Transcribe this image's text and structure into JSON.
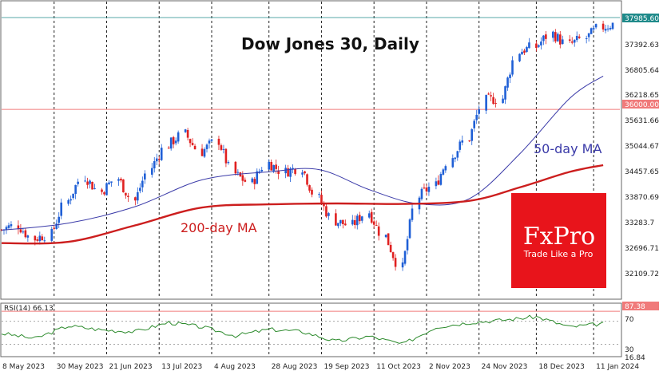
{
  "chart_data": [
    {
      "type": "candlestick",
      "title": "Dow Jones 30, Daily",
      "y_ticks": [
        37392.63,
        36805.64,
        36218.65,
        35631.66,
        35044.67,
        34457.65,
        33870.69,
        33283.7,
        32696.71,
        32109.72
      ],
      "ylim": [
        31760,
        38420
      ],
      "x_ticks": [
        "8 May 2023",
        "30 May 2023",
        "21 Jun 2023",
        "13 Jul 2023",
        "4 Aug 2023",
        "28 Aug 2023",
        "19 Sep 2023",
        "11 Oct 2023",
        "2 Nov 2023",
        "24 Nov 2023",
        "18 Dec 2023",
        "11 Jan 2024"
      ],
      "price_tag": "37985.60",
      "level_tag": "36000.00",
      "level_value": 36000.0,
      "candle_color_up": "#1f5fd6",
      "candle_color_down": "#e02020",
      "closes_by_week": [
        {
          "week": "2023-05-08",
          "close": 33300
        },
        {
          "week": "2023-05-15",
          "close": 33400
        },
        {
          "week": "2023-05-22",
          "close": 33100
        },
        {
          "week": "2023-05-29",
          "close": 33200
        },
        {
          "week": "2023-06-05",
          "close": 33950
        },
        {
          "week": "2023-06-12",
          "close": 34500
        },
        {
          "week": "2023-06-19",
          "close": 34150
        },
        {
          "week": "2023-06-26",
          "close": 34450
        },
        {
          "week": "2023-07-03",
          "close": 33950
        },
        {
          "week": "2023-07-10",
          "close": 34700
        },
        {
          "week": "2023-07-17",
          "close": 35200
        },
        {
          "week": "2023-07-24",
          "close": 35450
        },
        {
          "week": "2023-07-31",
          "close": 35050
        },
        {
          "week": "2023-08-07",
          "close": 35300
        },
        {
          "week": "2023-08-14",
          "close": 34550
        },
        {
          "week": "2023-08-21",
          "close": 34350
        },
        {
          "week": "2023-08-28",
          "close": 34800
        },
        {
          "week": "2023-09-04",
          "close": 34600
        },
        {
          "week": "2023-09-11",
          "close": 34700
        },
        {
          "week": "2023-09-18",
          "close": 34000
        },
        {
          "week": "2023-09-25",
          "close": 33500
        },
        {
          "week": "2023-10-02",
          "close": 33400
        },
        {
          "week": "2023-10-09",
          "close": 33700
        },
        {
          "week": "2023-10-16",
          "close": 33150
        },
        {
          "week": "2023-10-23",
          "close": 32450
        },
        {
          "week": "2023-10-30",
          "close": 34050
        },
        {
          "week": "2023-11-06",
          "close": 34300
        },
        {
          "week": "2023-11-13",
          "close": 34950
        },
        {
          "week": "2023-11-20",
          "close": 35350
        },
        {
          "week": "2023-11-27",
          "close": 36200
        },
        {
          "week": "2023-12-04",
          "close": 36250
        },
        {
          "week": "2023-12-11",
          "close": 37300
        },
        {
          "week": "2023-12-18",
          "close": 37400
        },
        {
          "week": "2023-12-25",
          "close": 37700
        },
        {
          "week": "2024-01-01",
          "close": 37450
        },
        {
          "week": "2024-01-08",
          "close": 37600
        },
        {
          "week": "2024-01-15",
          "close": 37850
        }
      ],
      "ma50": {
        "name": "50-day MA",
        "color": "#3a3aa8",
        "values": [
          {
            "week": "2023-05-08",
            "v": 33290
          },
          {
            "week": "2023-06-05",
            "v": 33450
          },
          {
            "week": "2023-07-03",
            "v": 33820
          },
          {
            "week": "2023-07-31",
            "v": 34420
          },
          {
            "week": "2023-08-28",
            "v": 34600
          },
          {
            "week": "2023-09-18",
            "v": 34650
          },
          {
            "week": "2023-10-09",
            "v": 34200
          },
          {
            "week": "2023-10-30",
            "v": 33880
          },
          {
            "week": "2023-11-20",
            "v": 34000
          },
          {
            "week": "2023-12-11",
            "v": 35000
          },
          {
            "week": "2024-01-01",
            "v": 36250
          },
          {
            "week": "2024-01-15",
            "v": 36750
          }
        ]
      },
      "ma200": {
        "name": "200-day MA",
        "color": "#cc1e1e",
        "values": [
          {
            "week": "2023-05-08",
            "v": 33000
          },
          {
            "week": "2023-06-05",
            "v": 33030
          },
          {
            "week": "2023-07-03",
            "v": 33400
          },
          {
            "week": "2023-07-31",
            "v": 33800
          },
          {
            "week": "2023-08-28",
            "v": 33870
          },
          {
            "week": "2023-09-25",
            "v": 33890
          },
          {
            "week": "2023-10-23",
            "v": 33880
          },
          {
            "week": "2023-11-20",
            "v": 33950
          },
          {
            "week": "2023-12-11",
            "v": 34250
          },
          {
            "week": "2024-01-01",
            "v": 34600
          },
          {
            "week": "2024-01-15",
            "v": 34750
          }
        ]
      }
    },
    {
      "type": "line",
      "name": "RSI",
      "label": "RSI(14) 66.13",
      "y_ticks": [
        70.0,
        30.0
      ],
      "ylim": [
        10,
        100
      ],
      "overbought_tag": "87.38",
      "bottom_tag": "16.84",
      "color": "#2b8a2b",
      "values": [
        {
          "week": "2023-05-08",
          "v": 49
        },
        {
          "week": "2023-05-22",
          "v": 40
        },
        {
          "week": "2023-06-05",
          "v": 62
        },
        {
          "week": "2023-06-19",
          "v": 55
        },
        {
          "week": "2023-07-03",
          "v": 52
        },
        {
          "week": "2023-07-17",
          "v": 68
        },
        {
          "week": "2023-07-31",
          "v": 60
        },
        {
          "week": "2023-08-14",
          "v": 45
        },
        {
          "week": "2023-08-28",
          "v": 56
        },
        {
          "week": "2023-09-11",
          "v": 52
        },
        {
          "week": "2023-09-25",
          "v": 35
        },
        {
          "week": "2023-10-09",
          "v": 44
        },
        {
          "week": "2023-10-23",
          "v": 30
        },
        {
          "week": "2023-11-06",
          "v": 60
        },
        {
          "week": "2023-11-20",
          "v": 68
        },
        {
          "week": "2023-12-04",
          "v": 72
        },
        {
          "week": "2023-12-18",
          "v": 78
        },
        {
          "week": "2024-01-01",
          "v": 60
        },
        {
          "week": "2024-01-15",
          "v": 66
        }
      ]
    }
  ],
  "brand": {
    "name": "FxPro",
    "tagline": "Trade Like a Pro",
    "color": "#e8141b"
  }
}
